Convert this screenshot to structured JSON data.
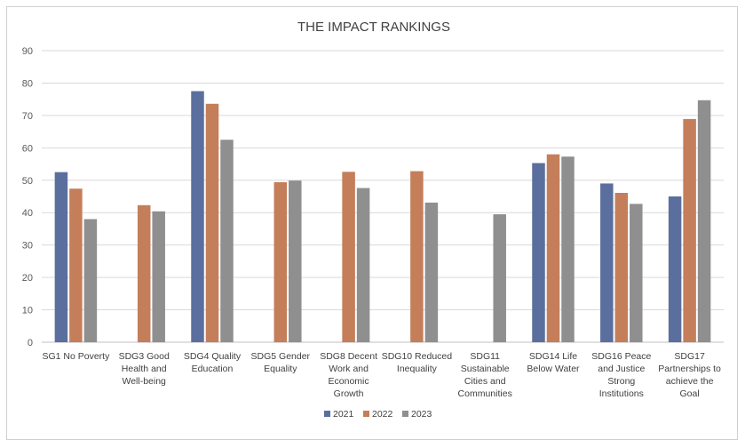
{
  "chart_data": {
    "type": "bar",
    "title": "THE IMPACT RANKINGS",
    "xlabel": "",
    "ylabel": "",
    "ylim": [
      0,
      90
    ],
    "yticks": [
      0,
      10,
      20,
      30,
      40,
      50,
      60,
      70,
      80,
      90
    ],
    "grid": true,
    "legend_position": "bottom",
    "categories": [
      [
        "SG1 No Poverty"
      ],
      [
        "SDG3 Good",
        "Health and",
        "Well-being"
      ],
      [
        "SDG4 Quality",
        "Education"
      ],
      [
        "SDG5 Gender",
        "Equality"
      ],
      [
        "SDG8 Decent",
        "Work and",
        "Economic",
        "Growth"
      ],
      [
        "SDG10 Reduced",
        "Inequality"
      ],
      [
        "SDG11",
        "Sustainable",
        "Cities and",
        "Communities"
      ],
      [
        "SDG14 Life",
        "Below Water"
      ],
      [
        "SDG16 Peace",
        "and Justice",
        "Strong",
        "Institutions"
      ],
      [
        "SDG17",
        "Partnerships to",
        "achieve the",
        "Goal"
      ]
    ],
    "series": [
      {
        "name": "2021",
        "color": "#5b6f9e",
        "values": [
          52.5,
          null,
          77.5,
          null,
          null,
          null,
          null,
          55.3,
          49,
          45
        ]
      },
      {
        "name": "2022",
        "color": "#c47e5a",
        "values": [
          47.4,
          42.3,
          73.6,
          49.4,
          52.6,
          52.8,
          null,
          58,
          46.1,
          68.9
        ]
      },
      {
        "name": "2023",
        "color": "#8f8f8f",
        "values": [
          38,
          40.4,
          62.5,
          49.9,
          47.6,
          43.1,
          39.5,
          57.3,
          42.7,
          74.7
        ]
      }
    ]
  }
}
